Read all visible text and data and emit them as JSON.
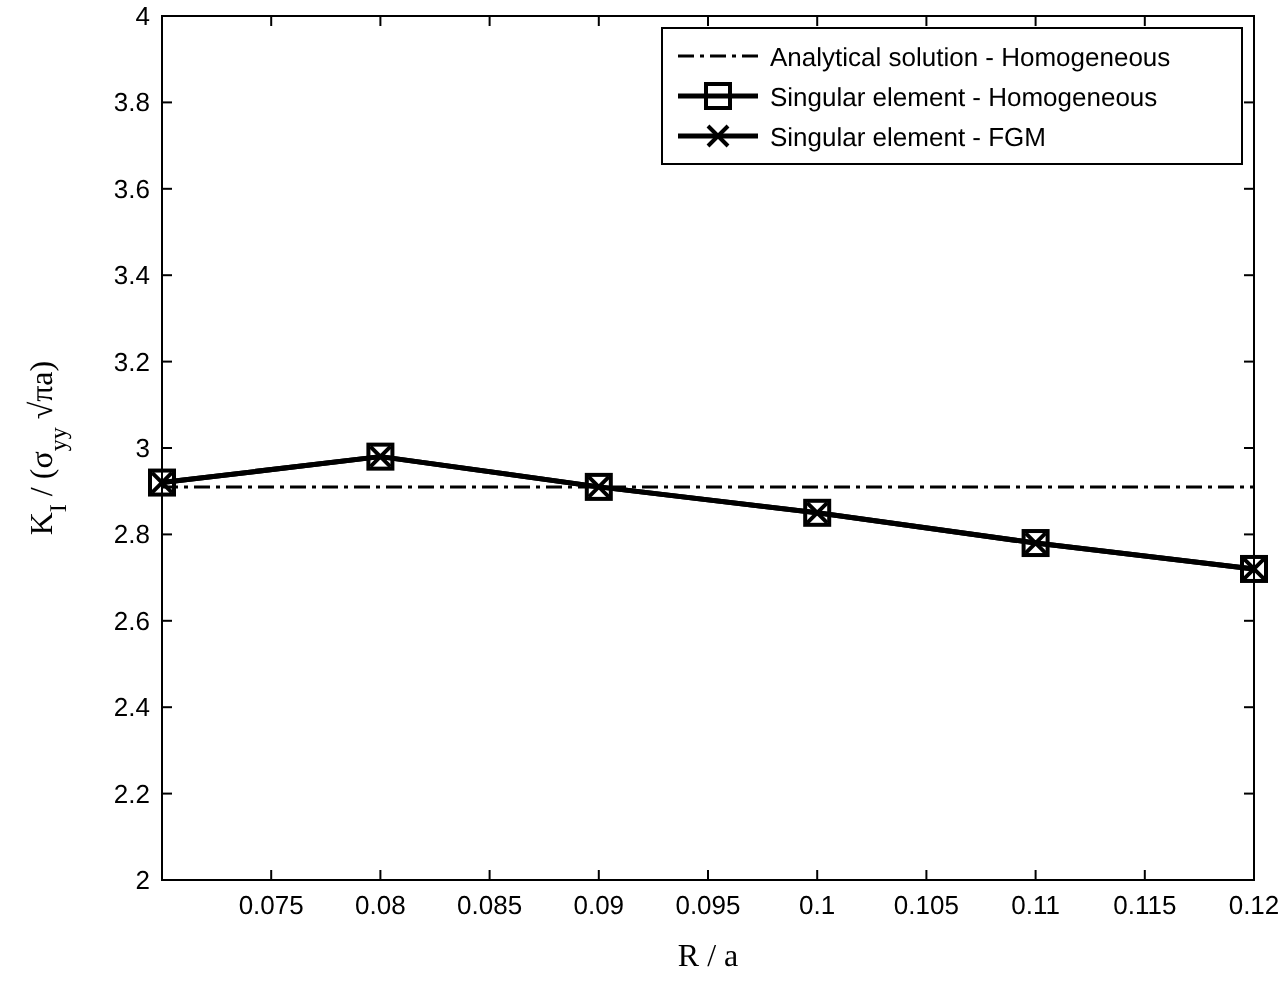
{
  "chart_data": {
    "type": "line",
    "xlabel": "R / a",
    "ylabel": "K$_{I}$ / (σ$_{yy}$ √πa)",
    "xlim": [
      0.07,
      0.12
    ],
    "xticks": [
      0.075,
      0.08,
      0.085,
      0.09,
      0.095,
      0.1,
      0.105,
      0.11,
      0.115,
      0.12
    ],
    "ylim": [
      2,
      4
    ],
    "yticks": [
      2,
      2.2,
      2.4,
      2.6,
      2.8,
      3,
      3.2,
      3.4,
      3.6,
      3.8,
      4
    ],
    "x": [
      0.07,
      0.08,
      0.09,
      0.1,
      0.11,
      0.12
    ],
    "series": [
      {
        "name": "Analytical solution - Homogeneous",
        "color": "#000000",
        "x": [
          0.07,
          0.12
        ],
        "values": [
          2.91,
          2.91
        ],
        "line_style": "dashed",
        "marker": "none"
      },
      {
        "name": "Singular element - Homogeneous",
        "color": "#000000",
        "values": [
          2.92,
          2.98,
          2.91,
          2.85,
          2.78,
          2.72
        ],
        "line_style": "solid",
        "marker": "square"
      },
      {
        "name": "Singular element - FGM",
        "color": "#000000",
        "values": [
          2.92,
          2.98,
          2.91,
          2.85,
          2.78,
          2.72
        ],
        "line_style": "solid",
        "marker": "cross"
      }
    ],
    "grid": false,
    "legend": "top right"
  }
}
